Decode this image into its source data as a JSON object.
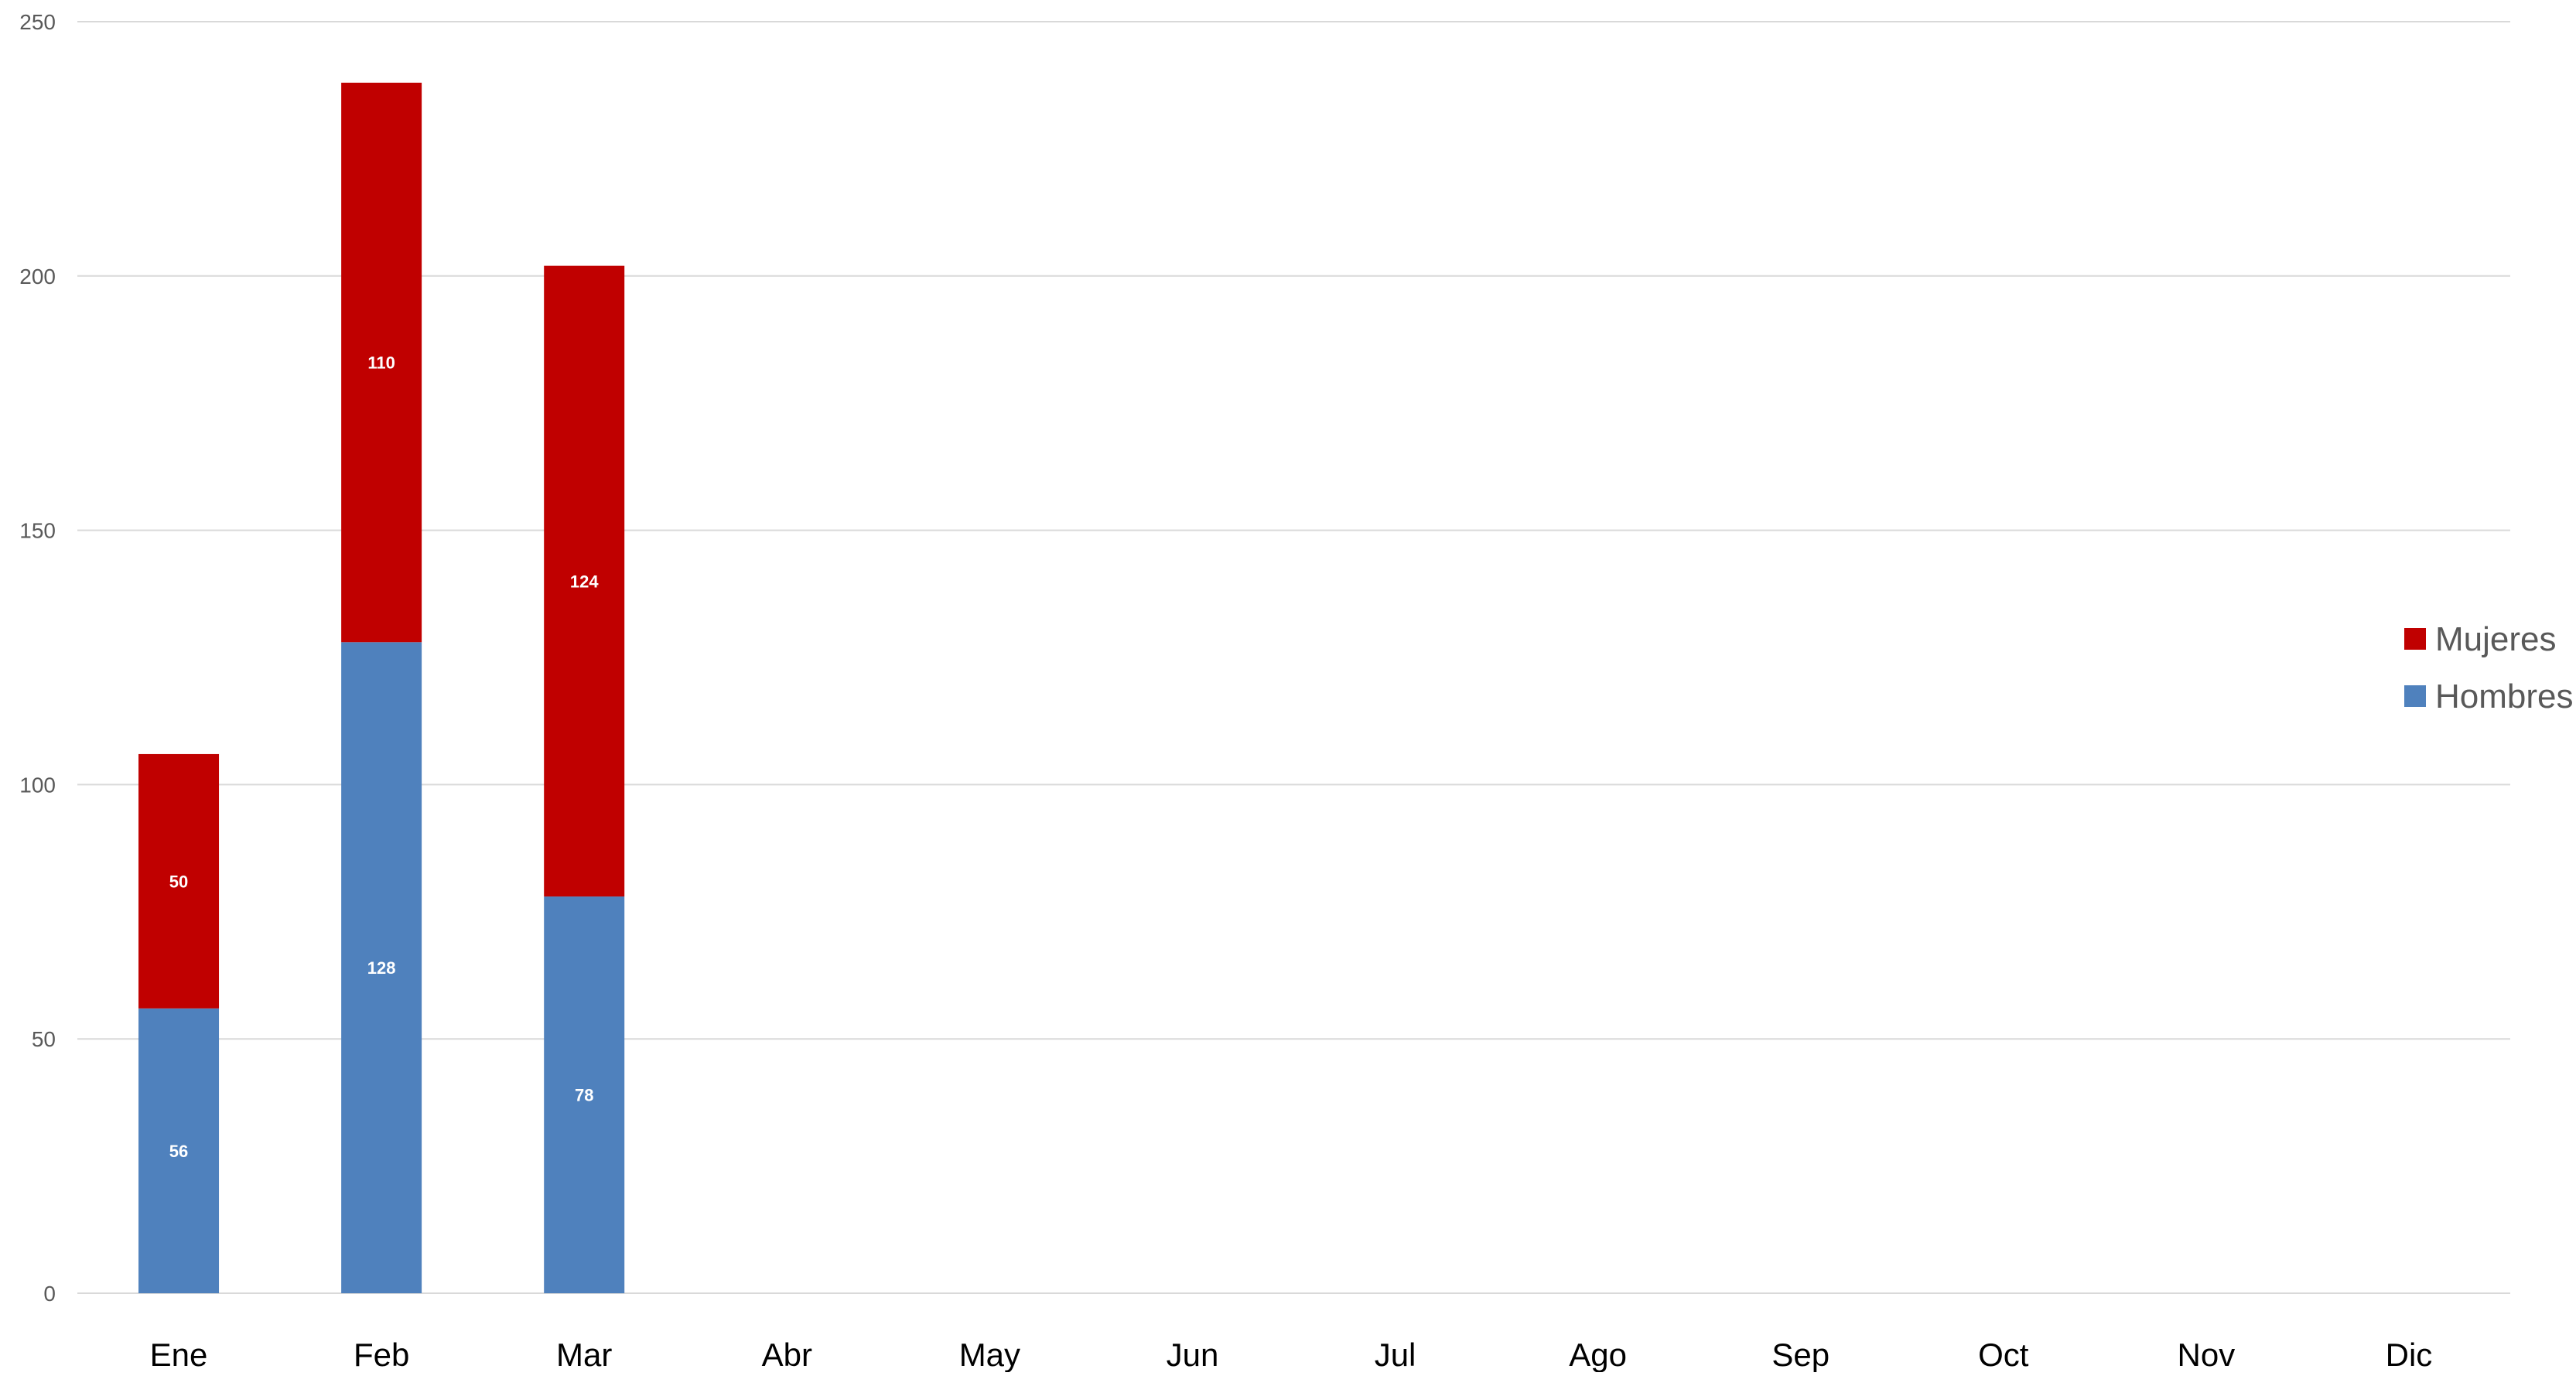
{
  "chart_data": {
    "type": "bar",
    "stacked": true,
    "categories": [
      "Ene",
      "Feb",
      "Mar",
      "Abr",
      "May",
      "Jun",
      "Jul",
      "Ago",
      "Sep",
      "Oct",
      "Nov",
      "Dic"
    ],
    "series": [
      {
        "name": "Hombres",
        "color": "#4f81bd",
        "values": [
          56,
          128,
          78,
          null,
          null,
          null,
          null,
          null,
          null,
          null,
          null,
          null
        ]
      },
      {
        "name": "Mujeres",
        "color": "#c00000",
        "values": [
          50,
          110,
          124,
          null,
          null,
          null,
          null,
          null,
          null,
          null,
          null,
          null
        ]
      }
    ],
    "title": "",
    "xlabel": "",
    "ylabel": "",
    "ylim": [
      0,
      250
    ],
    "yticks": [
      0,
      50,
      100,
      150,
      200,
      250
    ],
    "grid": true,
    "legend": {
      "position": "right",
      "order": [
        "Mujeres",
        "Hombres"
      ]
    }
  }
}
